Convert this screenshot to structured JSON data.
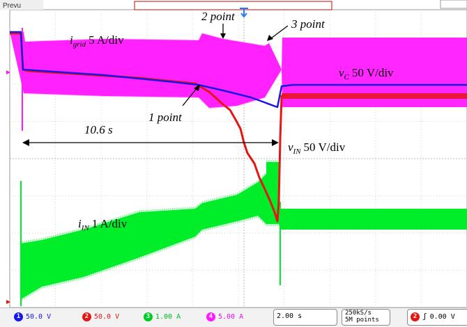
{
  "colors": {
    "ch1": "#1717e6",
    "ch2": "#e61515",
    "ch3": "#00ee2a",
    "ch4": "#ff1aff",
    "grid": "#c8c8c8",
    "trigger": "#2277ff"
  },
  "scope_header": {
    "run_state": "Prevu"
  },
  "annotations": {
    "igrid": {
      "sym": "i",
      "sub": "grid",
      "scale": "5 A/div"
    },
    "vc": {
      "sym": "v",
      "sub": "C",
      "scale": "50 V/div"
    },
    "vin": {
      "sym": "v",
      "sub": "IN",
      "scale": "50 V/div"
    },
    "iin": {
      "sym": "i",
      "sub": "IN",
      "scale": "1 A/div"
    },
    "point1": "1 point",
    "point2": "2 point",
    "point3": "3 point",
    "duration": "10.6 s"
  },
  "status_bar": {
    "ch1": {
      "num": "1",
      "value": "50.0 V"
    },
    "ch2": {
      "num": "2",
      "value": "50.0 V"
    },
    "ch3": {
      "num": "3",
      "value": "1.00 A"
    },
    "ch4": {
      "num": "4",
      "value": "5.00 A"
    },
    "timebase": "2.00 s",
    "sample_rate": "250kS/s",
    "record_length": "5M points",
    "trigger": {
      "num": "2",
      "value": "0.00 V"
    }
  }
}
